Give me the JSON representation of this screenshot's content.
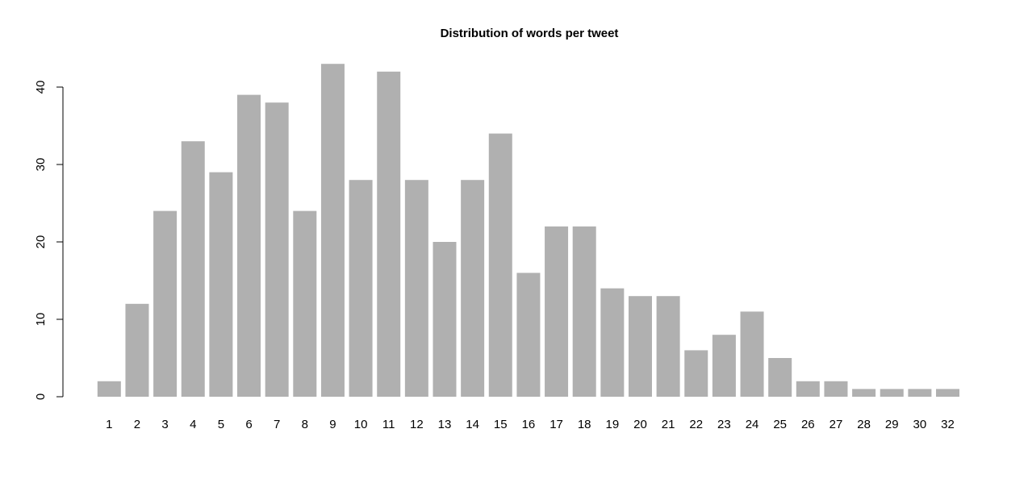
{
  "chart_data": {
    "type": "bar",
    "title": "Distribution of words per tweet",
    "xlabel": "",
    "ylabel": "",
    "categories": [
      "1",
      "2",
      "3",
      "4",
      "5",
      "6",
      "7",
      "8",
      "9",
      "10",
      "11",
      "12",
      "13",
      "14",
      "15",
      "16",
      "17",
      "18",
      "19",
      "20",
      "21",
      "22",
      "23",
      "24",
      "25",
      "26",
      "27",
      "28",
      "29",
      "30",
      "32"
    ],
    "values": [
      2,
      12,
      24,
      33,
      29,
      39,
      38,
      24,
      43,
      28,
      42,
      28,
      20,
      28,
      34,
      16,
      22,
      22,
      14,
      13,
      13,
      6,
      8,
      11,
      5,
      2,
      2,
      1,
      1,
      1,
      1
    ],
    "y_ticks": [
      0,
      10,
      20,
      30,
      40
    ],
    "ylim": [
      0,
      43
    ],
    "bar_color": "#b0b0b0",
    "grid": false,
    "legend": "none"
  }
}
